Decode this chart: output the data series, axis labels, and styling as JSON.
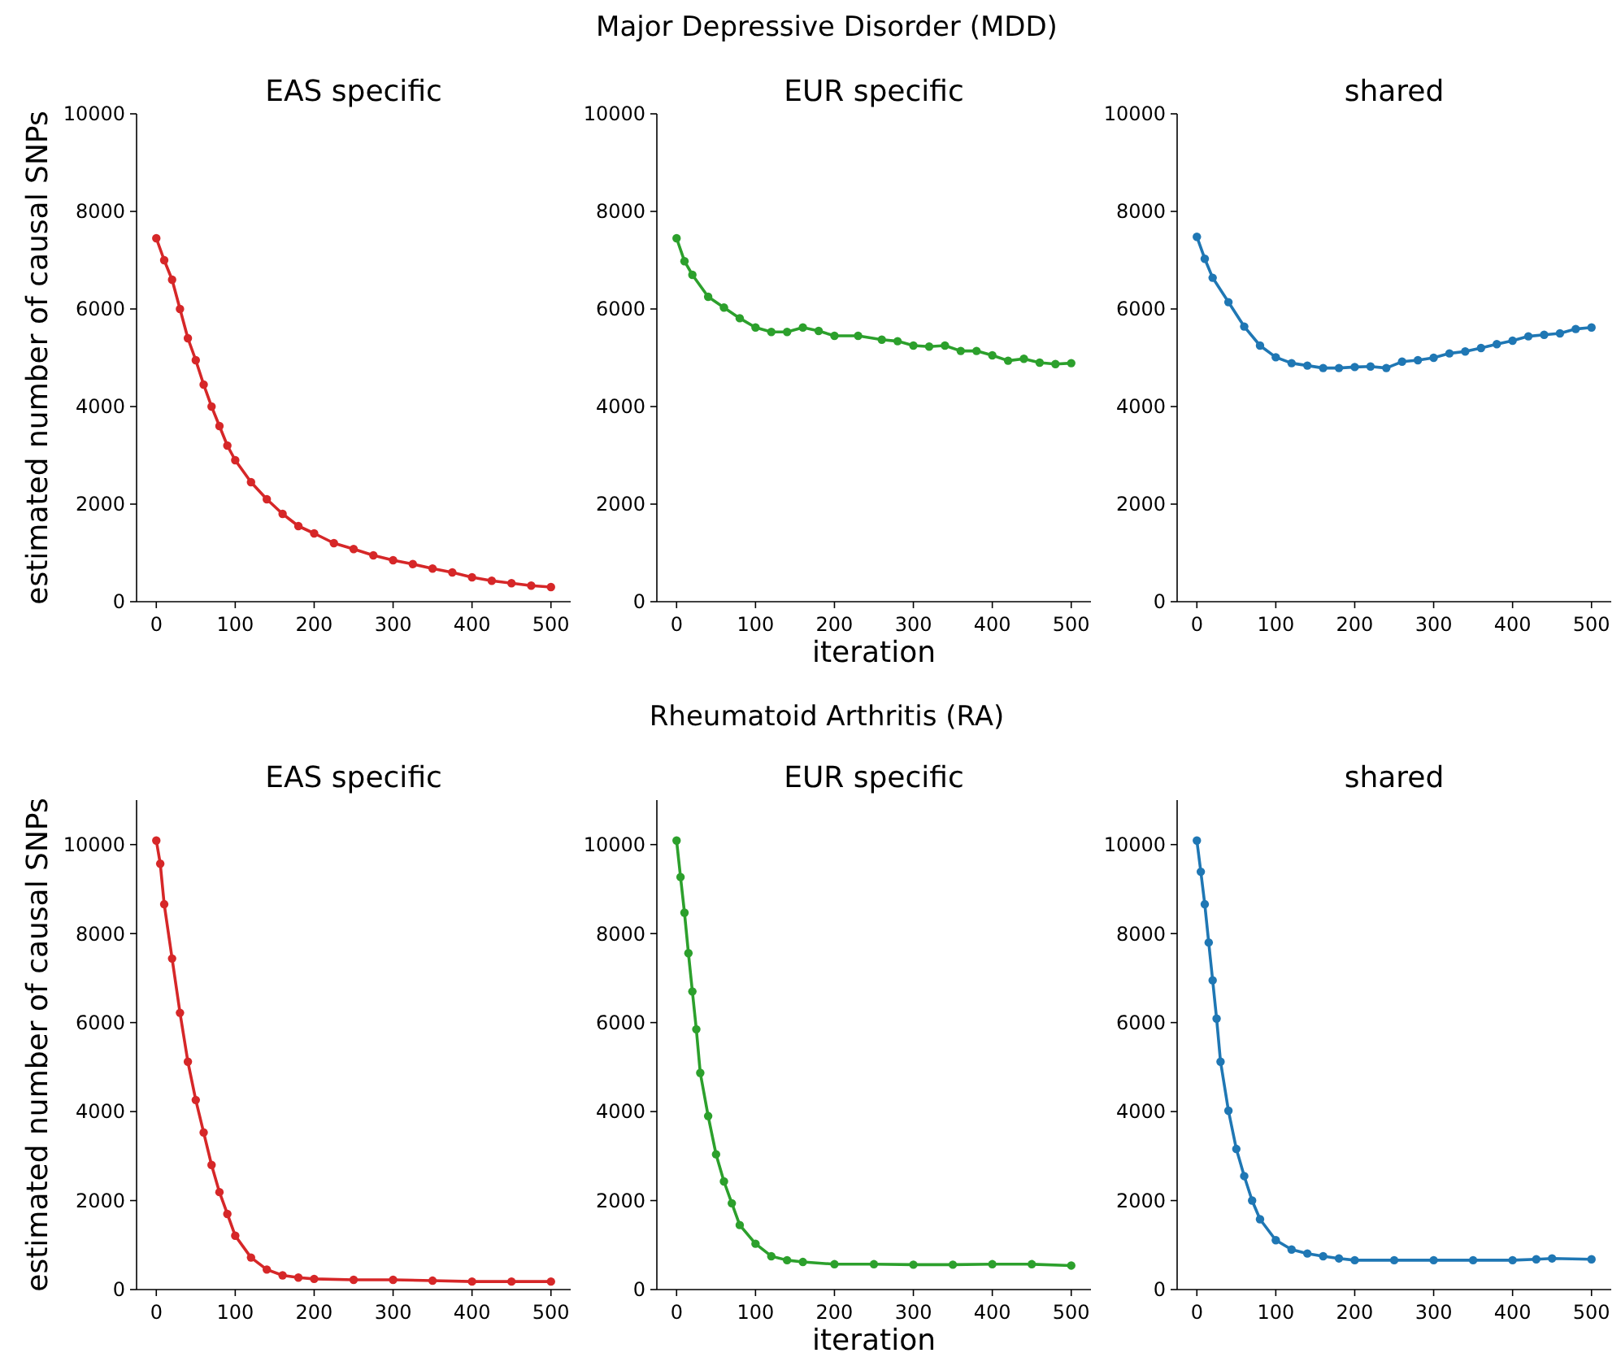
{
  "chart_data": [
    {
      "type": "line",
      "title": "EAS specific",
      "ylabel": "estimated number of causal SNPs",
      "annotations": [
        "Major Depressive Disorder (MDD)"
      ],
      "marker": "circle",
      "xlim": [
        -25,
        525
      ],
      "xticks": [
        0,
        100,
        200,
        300,
        400,
        500
      ],
      "ylim": [
        0,
        10000
      ],
      "yticks": [
        0,
        2000,
        4000,
        6000,
        8000,
        10000
      ],
      "series": [
        {
          "color": "#d62728",
          "x": [
            0,
            10,
            20,
            30,
            40,
            50,
            60,
            70,
            80,
            90,
            100,
            120,
            140,
            160,
            180,
            200,
            225,
            250,
            275,
            300,
            325,
            350,
            375,
            400,
            425,
            450,
            475,
            500
          ],
          "values": [
            7450,
            7000,
            6600,
            6000,
            5400,
            4950,
            4450,
            4000,
            3600,
            3200,
            2900,
            2450,
            2100,
            1800,
            1550,
            1400,
            1200,
            1080,
            950,
            850,
            770,
            680,
            600,
            500,
            430,
            380,
            330,
            300
          ]
        }
      ]
    },
    {
      "type": "line",
      "title": "EUR specific",
      "xlabel": "iteration",
      "marker": "circle",
      "xlim": [
        -25,
        525
      ],
      "xticks": [
        0,
        100,
        200,
        300,
        400,
        500
      ],
      "ylim": [
        0,
        10000
      ],
      "yticks": [
        0,
        2000,
        4000,
        6000,
        8000,
        10000
      ],
      "series": [
        {
          "color": "#2ca02c",
          "x": [
            0,
            10,
            20,
            40,
            60,
            80,
            100,
            120,
            140,
            160,
            180,
            200,
            230,
            260,
            280,
            300,
            320,
            340,
            360,
            380,
            400,
            420,
            440,
            460,
            480,
            500
          ],
          "values": [
            7450,
            6980,
            6700,
            6250,
            6030,
            5810,
            5620,
            5530,
            5530,
            5620,
            5550,
            5450,
            5450,
            5370,
            5340,
            5250,
            5230,
            5250,
            5140,
            5140,
            5050,
            4940,
            4980,
            4900,
            4870,
            4890
          ]
        }
      ]
    },
    {
      "type": "line",
      "title": "shared",
      "marker": "circle",
      "xlim": [
        -25,
        525
      ],
      "xticks": [
        0,
        100,
        200,
        300,
        400,
        500
      ],
      "ylim": [
        0,
        10000
      ],
      "yticks": [
        0,
        2000,
        4000,
        6000,
        8000,
        10000
      ],
      "series": [
        {
          "color": "#1f77b4",
          "x": [
            0,
            10,
            20,
            40,
            60,
            80,
            100,
            120,
            140,
            160,
            180,
            200,
            220,
            240,
            260,
            280,
            300,
            320,
            340,
            360,
            380,
            400,
            420,
            440,
            460,
            480,
            500
          ],
          "values": [
            7480,
            7030,
            6640,
            6140,
            5640,
            5250,
            5010,
            4890,
            4840,
            4790,
            4790,
            4810,
            4820,
            4790,
            4920,
            4950,
            5000,
            5090,
            5130,
            5200,
            5280,
            5350,
            5440,
            5470,
            5500,
            5590,
            5620
          ]
        }
      ]
    },
    {
      "type": "line",
      "title": "EAS specific",
      "ylabel": "estimated number of causal SNPs",
      "annotations": [
        "Rheumatoid Arthritis (RA)"
      ],
      "marker": "circle",
      "xlim": [
        -25,
        525
      ],
      "xticks": [
        0,
        100,
        200,
        300,
        400,
        500
      ],
      "ylim": [
        0,
        11000
      ],
      "yticks": [
        0,
        2000,
        4000,
        6000,
        8000,
        10000
      ],
      "series": [
        {
          "color": "#d62728",
          "x": [
            0,
            5,
            10,
            20,
            30,
            40,
            50,
            60,
            70,
            80,
            90,
            100,
            120,
            140,
            160,
            180,
            200,
            250,
            300,
            350,
            400,
            450,
            500
          ],
          "values": [
            10090,
            9570,
            8660,
            7440,
            6220,
            5120,
            4260,
            3530,
            2800,
            2190,
            1700,
            1210,
            720,
            450,
            320,
            270,
            240,
            220,
            220,
            200,
            180,
            180,
            180
          ]
        }
      ]
    },
    {
      "type": "line",
      "title": "EUR specific",
      "xlabel": "iteration",
      "marker": "circle",
      "xlim": [
        -25,
        525
      ],
      "xticks": [
        0,
        100,
        200,
        300,
        400,
        500
      ],
      "ylim": [
        0,
        11000
      ],
      "yticks": [
        0,
        2000,
        4000,
        6000,
        8000,
        10000
      ],
      "series": [
        {
          "color": "#2ca02c",
          "x": [
            0,
            5,
            10,
            15,
            20,
            25,
            30,
            40,
            50,
            60,
            70,
            80,
            100,
            120,
            140,
            160,
            200,
            250,
            300,
            350,
            400,
            450,
            500
          ],
          "values": [
            10090,
            9270,
            8470,
            7560,
            6700,
            5850,
            4870,
            3900,
            3040,
            2430,
            1940,
            1450,
            1030,
            750,
            660,
            620,
            570,
            570,
            560,
            560,
            570,
            570,
            540
          ]
        }
      ]
    },
    {
      "type": "line",
      "title": "shared",
      "marker": "circle",
      "xlim": [
        -25,
        525
      ],
      "xticks": [
        0,
        100,
        200,
        300,
        400,
        500
      ],
      "ylim": [
        0,
        11000
      ],
      "yticks": [
        0,
        2000,
        4000,
        6000,
        8000,
        10000
      ],
      "series": [
        {
          "color": "#1f77b4",
          "x": [
            0,
            5,
            10,
            15,
            20,
            25,
            30,
            40,
            50,
            60,
            70,
            80,
            100,
            120,
            140,
            160,
            180,
            200,
            250,
            300,
            350,
            400,
            430,
            450,
            500
          ],
          "values": [
            10090,
            9390,
            8660,
            7800,
            6950,
            6090,
            5120,
            4020,
            3160,
            2550,
            2000,
            1580,
            1110,
            900,
            810,
            750,
            700,
            660,
            660,
            660,
            660,
            660,
            680,
            700,
            680
          ]
        }
      ]
    }
  ]
}
